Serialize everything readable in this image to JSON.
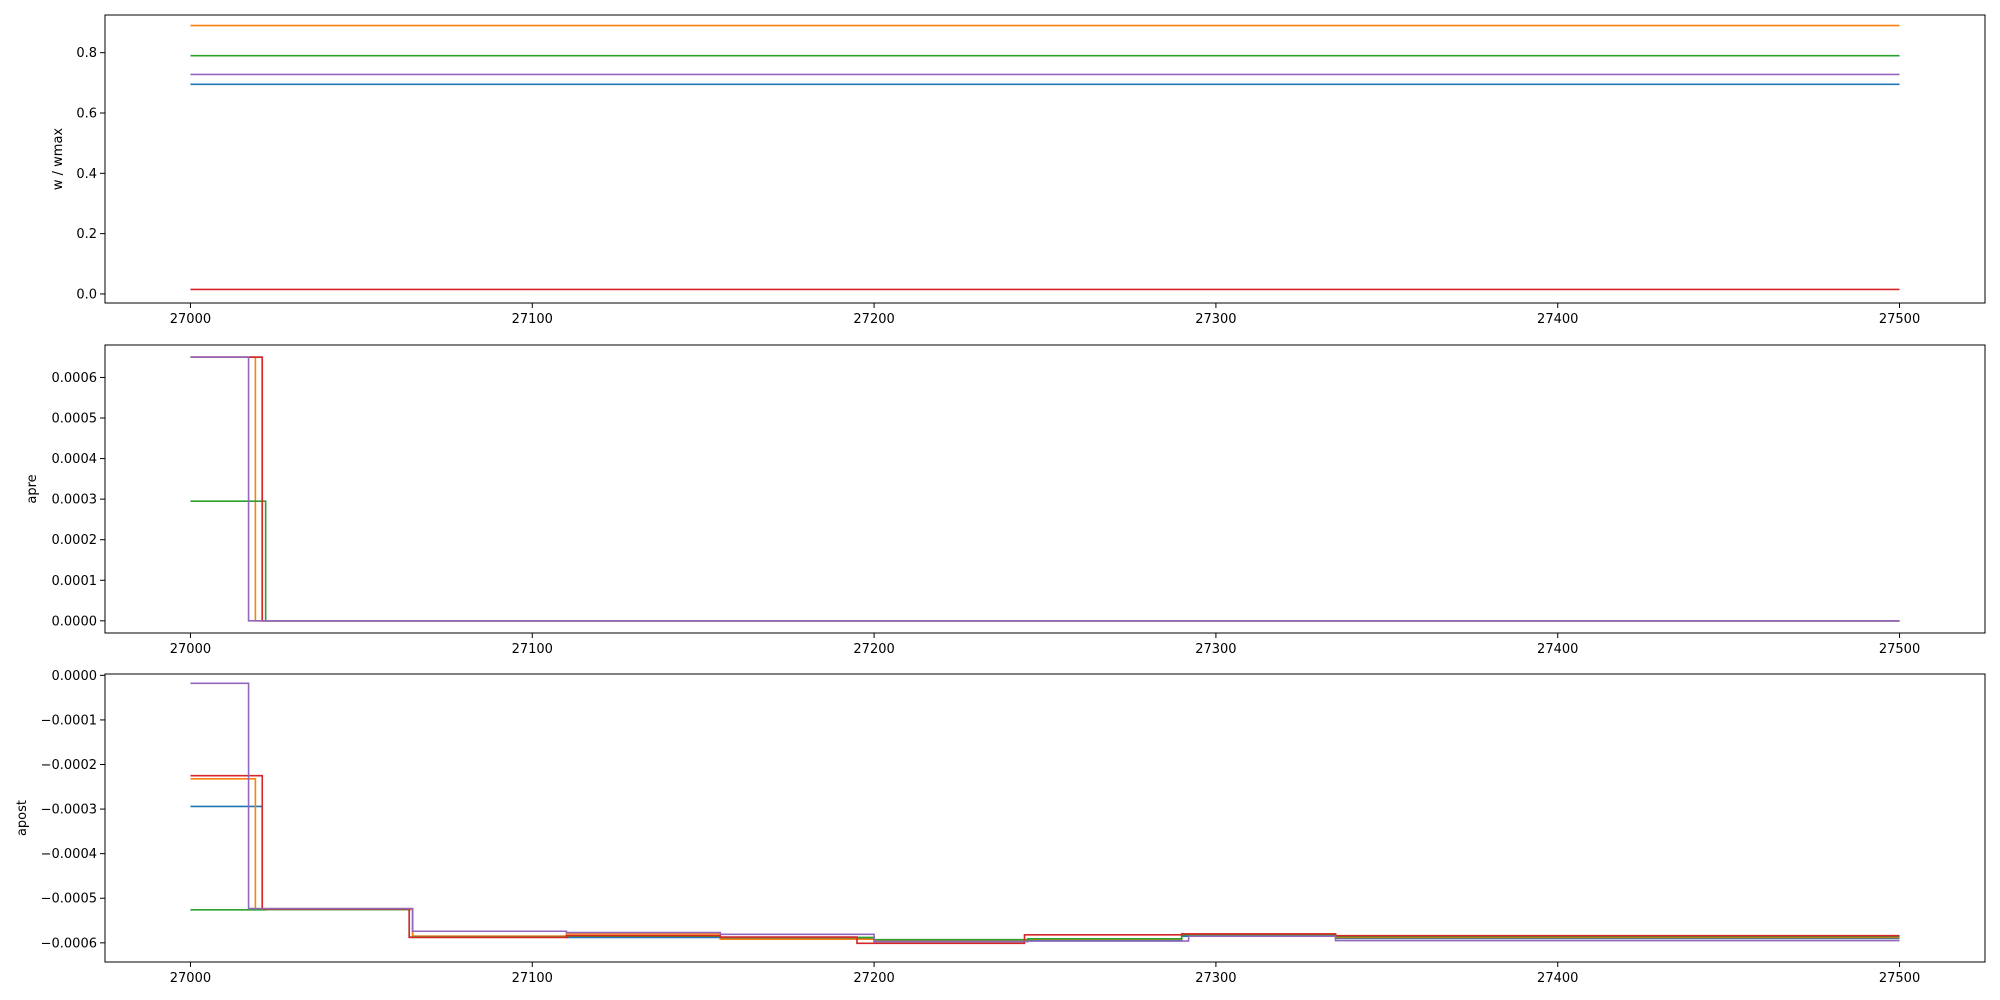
{
  "colors": {
    "c0": "#1f77b4",
    "c1": "#ff7f0e",
    "c2": "#2ca02c",
    "c3": "#d62728",
    "c4": "#9467bd"
  },
  "chart_data": [
    {
      "type": "line",
      "title": "",
      "xlabel": "",
      "ylabel": "w / wmax",
      "xlim": [
        26975,
        27525
      ],
      "ylim": [
        -0.03,
        0.925
      ],
      "xticks": [
        27000,
        27100,
        27200,
        27300,
        27400,
        27500
      ],
      "xtick_labels": [
        "27000",
        "27100",
        "27200",
        "27300",
        "27400",
        "27500"
      ],
      "yticks": [
        0.0,
        0.2,
        0.4,
        0.6,
        0.8
      ],
      "ytick_labels": [
        "0.0",
        "0.2",
        "0.4",
        "0.6",
        "0.8"
      ],
      "grid": false,
      "series": [
        {
          "color": "c0",
          "x": [
            27000,
            27500
          ],
          "y": [
            0.695,
            0.695
          ]
        },
        {
          "color": "c1",
          "x": [
            27000,
            27500
          ],
          "y": [
            0.89,
            0.89
          ]
        },
        {
          "color": "c2",
          "x": [
            27000,
            27500
          ],
          "y": [
            0.79,
            0.79
          ]
        },
        {
          "color": "c3",
          "x": [
            27000,
            27500
          ],
          "y": [
            0.015,
            0.015
          ]
        },
        {
          "color": "c4",
          "x": [
            27000,
            27500
          ],
          "y": [
            0.728,
            0.728
          ]
        }
      ]
    },
    {
      "type": "line",
      "title": "",
      "xlabel": "",
      "ylabel": "apre",
      "xlim": [
        26975,
        27525
      ],
      "ylim": [
        -3e-05,
        0.00068
      ],
      "xticks": [
        27000,
        27100,
        27200,
        27300,
        27400,
        27500
      ],
      "xtick_labels": [
        "27000",
        "27100",
        "27200",
        "27300",
        "27400",
        "27500"
      ],
      "yticks": [
        0.0,
        0.0001,
        0.0002,
        0.0003,
        0.0004,
        0.0005,
        0.0006
      ],
      "ytick_labels": [
        "0.0000",
        "0.0001",
        "0.0002",
        "0.0003",
        "0.0004",
        "0.0005",
        "0.0006"
      ],
      "grid": false,
      "series": [
        {
          "color": "c0",
          "step": true,
          "x": [
            27000,
            27021,
            27500
          ],
          "y": [
            0.00065,
            0.0,
            0.0
          ]
        },
        {
          "color": "c1",
          "step": true,
          "x": [
            27000,
            27019,
            27500
          ],
          "y": [
            0.00065,
            0.0,
            0.0
          ]
        },
        {
          "color": "c2",
          "step": true,
          "x": [
            27000,
            27022,
            27500
          ],
          "y": [
            0.000295,
            0.0,
            0.0
          ]
        },
        {
          "color": "c3",
          "step": true,
          "x": [
            27000,
            27021,
            27500
          ],
          "y": [
            0.00065,
            0.0,
            0.0
          ]
        },
        {
          "color": "c4",
          "step": true,
          "x": [
            27000,
            27017,
            27500
          ],
          "y": [
            0.00065,
            0.0,
            0.0
          ]
        }
      ]
    },
    {
      "type": "line",
      "title": "",
      "xlabel": "",
      "ylabel": "apost",
      "xlim": [
        26975,
        27525
      ],
      "ylim": [
        -0.000643,
        3e-06
      ],
      "xticks": [
        27000,
        27100,
        27200,
        27300,
        27400,
        27500
      ],
      "xtick_labels": [
        "27000",
        "27100",
        "27200",
        "27300",
        "27400",
        "27500"
      ],
      "yticks": [
        0.0,
        -0.0001,
        -0.0002,
        -0.0003,
        -0.0004,
        -0.0005,
        -0.0006
      ],
      "ytick_labels": [
        "0.0000",
        "−0.0001",
        "−0.0002",
        "−0.0003",
        "−0.0004",
        "−0.0005",
        "−0.0006"
      ],
      "grid": false,
      "series": [
        {
          "color": "c0",
          "step": true,
          "x": [
            27000,
            27021,
            27065,
            27110,
            27155,
            27200,
            27245,
            27290,
            27335,
            27500
          ],
          "y": [
            -0.000294,
            -0.000525,
            -0.000585,
            -0.000588,
            -0.00059,
            -0.000597,
            -0.000594,
            -0.000585,
            -0.00059,
            -0.00059
          ]
        },
        {
          "color": "c1",
          "step": true,
          "x": [
            27000,
            27019,
            27065,
            27110,
            27155,
            27200,
            27245,
            27290,
            27335,
            27500
          ],
          "y": [
            -0.000232,
            -0.000525,
            -0.000585,
            -0.00058,
            -0.000592,
            -0.000596,
            -0.000592,
            -0.00058,
            -0.000588,
            -0.000588
          ]
        },
        {
          "color": "c2",
          "step": true,
          "x": [
            27000,
            27022,
            27064,
            27110,
            27155,
            27200,
            27245,
            27290,
            27335,
            27500
          ],
          "y": [
            -0.000526,
            -0.000525,
            -0.000587,
            -0.000585,
            -0.000588,
            -0.000593,
            -0.000591,
            -0.000582,
            -0.000586,
            -0.000586
          ]
        },
        {
          "color": "c3",
          "step": true,
          "x": [
            27000,
            27021,
            27064,
            27110,
            27155,
            27195,
            27244,
            27290,
            27335,
            27500
          ],
          "y": [
            -0.000225,
            -0.000524,
            -0.000588,
            -0.000584,
            -0.000587,
            -0.000601,
            -0.000582,
            -0.00058,
            -0.000584,
            -0.000584
          ]
        },
        {
          "color": "c4",
          "step": true,
          "x": [
            27000,
            27017,
            27065,
            27110,
            27155,
            27200,
            27245,
            27292,
            27335,
            27500
          ],
          "y": [
            -1.8e-05,
            -0.000523,
            -0.000574,
            -0.000577,
            -0.000581,
            -0.000597,
            -0.000596,
            -0.000585,
            -0.000595,
            -0.000595
          ]
        }
      ]
    }
  ]
}
